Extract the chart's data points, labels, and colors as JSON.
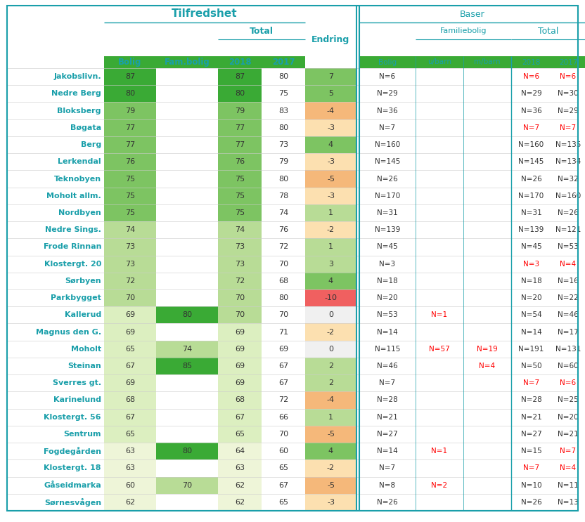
{
  "rows": [
    {
      "name": "Jakobslivn.",
      "bolig": 87,
      "fam_bolig": null,
      "total_2018": 87,
      "total_2017": 80,
      "endring": 7,
      "bas_bolig": "N=6",
      "bas_fam_u": null,
      "bas_fam_m": null,
      "bas_tot_2018": "N=6",
      "bas_tot_2017": "N=6",
      "red_2018": true,
      "red_2017": true
    },
    {
      "name": "Nedre Berg",
      "bolig": 80,
      "fam_bolig": null,
      "total_2018": 80,
      "total_2017": 75,
      "endring": 5,
      "bas_bolig": "N=29",
      "bas_fam_u": null,
      "bas_fam_m": null,
      "bas_tot_2018": "N=29",
      "bas_tot_2017": "N=30",
      "red_2018": false,
      "red_2017": false
    },
    {
      "name": "Bloksberg",
      "bolig": 79,
      "fam_bolig": null,
      "total_2018": 79,
      "total_2017": 83,
      "endring": -4,
      "bas_bolig": "N=36",
      "bas_fam_u": null,
      "bas_fam_m": null,
      "bas_tot_2018": "N=36",
      "bas_tot_2017": "N=29",
      "red_2018": false,
      "red_2017": false
    },
    {
      "name": "Bøgata",
      "bolig": 77,
      "fam_bolig": null,
      "total_2018": 77,
      "total_2017": 80,
      "endring": -3,
      "bas_bolig": "N=7",
      "bas_fam_u": null,
      "bas_fam_m": null,
      "bas_tot_2018": "N=7",
      "bas_tot_2017": "N=7",
      "red_2018": true,
      "red_2017": true
    },
    {
      "name": "Berg",
      "bolig": 77,
      "fam_bolig": null,
      "total_2018": 77,
      "total_2017": 73,
      "endring": 4,
      "bas_bolig": "N=160",
      "bas_fam_u": null,
      "bas_fam_m": null,
      "bas_tot_2018": "N=160",
      "bas_tot_2017": "N=135",
      "red_2018": false,
      "red_2017": false
    },
    {
      "name": "Lerkendal",
      "bolig": 76,
      "fam_bolig": null,
      "total_2018": 76,
      "total_2017": 79,
      "endring": -3,
      "bas_bolig": "N=145",
      "bas_fam_u": null,
      "bas_fam_m": null,
      "bas_tot_2018": "N=145",
      "bas_tot_2017": "N=134",
      "red_2018": false,
      "red_2017": false
    },
    {
      "name": "Teknobyen",
      "bolig": 75,
      "fam_bolig": null,
      "total_2018": 75,
      "total_2017": 80,
      "endring": -5,
      "bas_bolig": "N=26",
      "bas_fam_u": null,
      "bas_fam_m": null,
      "bas_tot_2018": "N=26",
      "bas_tot_2017": "N=32",
      "red_2018": false,
      "red_2017": false
    },
    {
      "name": "Moholt allm.",
      "bolig": 75,
      "fam_bolig": null,
      "total_2018": 75,
      "total_2017": 78,
      "endring": -3,
      "bas_bolig": "N=170",
      "bas_fam_u": null,
      "bas_fam_m": null,
      "bas_tot_2018": "N=170",
      "bas_tot_2017": "N=160",
      "red_2018": false,
      "red_2017": false
    },
    {
      "name": "Nordbyen",
      "bolig": 75,
      "fam_bolig": null,
      "total_2018": 75,
      "total_2017": 74,
      "endring": 1,
      "bas_bolig": "N=31",
      "bas_fam_u": null,
      "bas_fam_m": null,
      "bas_tot_2018": "N=31",
      "bas_tot_2017": "N=26",
      "red_2018": false,
      "red_2017": false
    },
    {
      "name": "Nedre Sings.",
      "bolig": 74,
      "fam_bolig": null,
      "total_2018": 74,
      "total_2017": 76,
      "endring": -2,
      "bas_bolig": "N=139",
      "bas_fam_u": null,
      "bas_fam_m": null,
      "bas_tot_2018": "N=139",
      "bas_tot_2017": "N=121",
      "red_2018": false,
      "red_2017": false
    },
    {
      "name": "Frode Rinnan",
      "bolig": 73,
      "fam_bolig": null,
      "total_2018": 73,
      "total_2017": 72,
      "endring": 1,
      "bas_bolig": "N=45",
      "bas_fam_u": null,
      "bas_fam_m": null,
      "bas_tot_2018": "N=45",
      "bas_tot_2017": "N=53",
      "red_2018": false,
      "red_2017": false
    },
    {
      "name": "Klostergt. 20",
      "bolig": 73,
      "fam_bolig": null,
      "total_2018": 73,
      "total_2017": 70,
      "endring": 3,
      "bas_bolig": "N=3",
      "bas_fam_u": null,
      "bas_fam_m": null,
      "bas_tot_2018": "N=3",
      "bas_tot_2017": "N=4",
      "red_2018": true,
      "red_2017": true
    },
    {
      "name": "Sørbyen",
      "bolig": 72,
      "fam_bolig": null,
      "total_2018": 72,
      "total_2017": 68,
      "endring": 4,
      "bas_bolig": "N=18",
      "bas_fam_u": null,
      "bas_fam_m": null,
      "bas_tot_2018": "N=18",
      "bas_tot_2017": "N=16",
      "red_2018": false,
      "red_2017": false
    },
    {
      "name": "Parkbygget",
      "bolig": 70,
      "fam_bolig": null,
      "total_2018": 70,
      "total_2017": 80,
      "endring": -10,
      "bas_bolig": "N=20",
      "bas_fam_u": null,
      "bas_fam_m": null,
      "bas_tot_2018": "N=20",
      "bas_tot_2017": "N=22",
      "red_2018": false,
      "red_2017": false
    },
    {
      "name": "Kallerud",
      "bolig": 69,
      "fam_bolig": 80,
      "total_2018": 70,
      "total_2017": 70,
      "endring": 0,
      "bas_bolig": "N=53",
      "bas_fam_u": "N=1",
      "bas_fam_m": null,
      "bas_tot_2018": "N=54",
      "bas_tot_2017": "N=46",
      "red_2018": false,
      "red_2017": false
    },
    {
      "name": "Magnus den G.",
      "bolig": 69,
      "fam_bolig": null,
      "total_2018": 69,
      "total_2017": 71,
      "endring": -2,
      "bas_bolig": "N=14",
      "bas_fam_u": null,
      "bas_fam_m": null,
      "bas_tot_2018": "N=14",
      "bas_tot_2017": "N=17",
      "red_2018": false,
      "red_2017": false
    },
    {
      "name": "Moholt",
      "bolig": 65,
      "fam_bolig": 74,
      "total_2018": 69,
      "total_2017": 69,
      "endring": 0,
      "bas_bolig": "N=115",
      "bas_fam_u": "N=57",
      "bas_fam_m": "N=19",
      "bas_tot_2018": "N=191",
      "bas_tot_2017": "N=131",
      "red_2018": false,
      "red_2017": false
    },
    {
      "name": "Steinan",
      "bolig": 67,
      "fam_bolig": 85,
      "total_2018": 69,
      "total_2017": 67,
      "endring": 2,
      "bas_bolig": "N=46",
      "bas_fam_u": null,
      "bas_fam_m": "N=4",
      "bas_tot_2018": "N=50",
      "bas_tot_2017": "N=60",
      "red_2018": false,
      "red_2017": false
    },
    {
      "name": "Sverres gt.",
      "bolig": 69,
      "fam_bolig": null,
      "total_2018": 69,
      "total_2017": 67,
      "endring": 2,
      "bas_bolig": "N=7",
      "bas_fam_u": null,
      "bas_fam_m": null,
      "bas_tot_2018": "N=7",
      "bas_tot_2017": "N=6",
      "red_2018": true,
      "red_2017": true
    },
    {
      "name": "Karinelund",
      "bolig": 68,
      "fam_bolig": null,
      "total_2018": 68,
      "total_2017": 72,
      "endring": -4,
      "bas_bolig": "N=28",
      "bas_fam_u": null,
      "bas_fam_m": null,
      "bas_tot_2018": "N=28",
      "bas_tot_2017": "N=25",
      "red_2018": false,
      "red_2017": false
    },
    {
      "name": "Klostergt. 56",
      "bolig": 67,
      "fam_bolig": null,
      "total_2018": 67,
      "total_2017": 66,
      "endring": 1,
      "bas_bolig": "N=21",
      "bas_fam_u": null,
      "bas_fam_m": null,
      "bas_tot_2018": "N=21",
      "bas_tot_2017": "N=20",
      "red_2018": false,
      "red_2017": false
    },
    {
      "name": "Sentrum",
      "bolig": 65,
      "fam_bolig": null,
      "total_2018": 65,
      "total_2017": 70,
      "endring": -5,
      "bas_bolig": "N=27",
      "bas_fam_u": null,
      "bas_fam_m": null,
      "bas_tot_2018": "N=27",
      "bas_tot_2017": "N=21",
      "red_2018": false,
      "red_2017": false
    },
    {
      "name": "Fogdegården",
      "bolig": 63,
      "fam_bolig": 80,
      "total_2018": 64,
      "total_2017": 60,
      "endring": 4,
      "bas_bolig": "N=14",
      "bas_fam_u": "N=1",
      "bas_fam_m": null,
      "bas_tot_2018": "N=15",
      "bas_tot_2017": "N=7",
      "red_2018": false,
      "red_2017": true
    },
    {
      "name": "Klostergt. 18",
      "bolig": 63,
      "fam_bolig": null,
      "total_2018": 63,
      "total_2017": 65,
      "endring": -2,
      "bas_bolig": "N=7",
      "bas_fam_u": null,
      "bas_fam_m": null,
      "bas_tot_2018": "N=7",
      "bas_tot_2017": "N=4",
      "red_2018": true,
      "red_2017": true
    },
    {
      "name": "Gåseidmarka",
      "bolig": 60,
      "fam_bolig": 70,
      "total_2018": 62,
      "total_2017": 67,
      "endring": -5,
      "bas_bolig": "N=8",
      "bas_fam_u": "N=2",
      "bas_fam_m": null,
      "bas_tot_2018": "N=10",
      "bas_tot_2017": "N=11",
      "red_2018": false,
      "red_2017": false
    },
    {
      "name": "Sørnesvågen",
      "bolig": 62,
      "fam_bolig": null,
      "total_2018": 62,
      "total_2017": 65,
      "endring": -3,
      "bas_bolig": "N=26",
      "bas_fam_u": null,
      "bas_fam_m": null,
      "bas_tot_2018": "N=26",
      "bas_tot_2017": "N=13",
      "red_2018": false,
      "red_2017": false
    }
  ],
  "hdr_color": "#1a9faa",
  "name_color": "#1a9faa",
  "border_color": "#1a9faa",
  "red_color": "#ff0000",
  "dark_text": "#333333",
  "fig_bg": "#ffffff",
  "green_dark": "#3aaa35",
  "green_med": "#7dc462",
  "green_light": "#b8dc96",
  "green_pale": "#dcefc0",
  "green_vpal": "#eef5d8",
  "orange_light": "#fce0b0",
  "orange_med": "#f5b87a",
  "orange_dark": "#f08050",
  "red_endring": "#f06060"
}
